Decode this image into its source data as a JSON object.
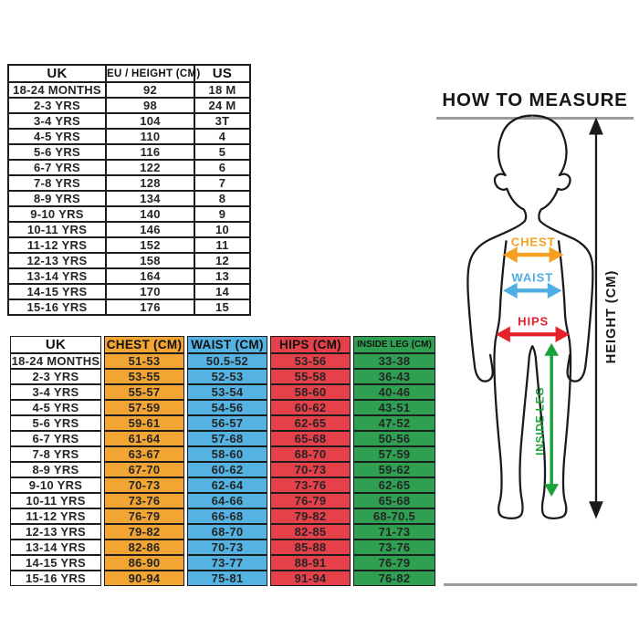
{
  "size_chart_international": {
    "columns": [
      "UK",
      "EU / HEIGHT (CM)",
      "US"
    ],
    "rows": [
      [
        "18-24 MONTHS",
        "92",
        "18 M"
      ],
      [
        "2-3 YRS",
        "98",
        "24 M"
      ],
      [
        "3-4 YRS",
        "104",
        "3T"
      ],
      [
        "4-5 YRS",
        "110",
        "4"
      ],
      [
        "5-6 YRS",
        "116",
        "5"
      ],
      [
        "6-7 YRS",
        "122",
        "6"
      ],
      [
        "7-8 YRS",
        "128",
        "7"
      ],
      [
        "8-9 YRS",
        "134",
        "8"
      ],
      [
        "9-10 YRS",
        "140",
        "9"
      ],
      [
        "10-11 YRS",
        "146",
        "10"
      ],
      [
        "11-12 YRS",
        "152",
        "11"
      ],
      [
        "12-13 YRS",
        "158",
        "12"
      ],
      [
        "13-14 YRS",
        "164",
        "13"
      ],
      [
        "14-15 YRS",
        "170",
        "14"
      ],
      [
        "15-16 YRS",
        "176",
        "15"
      ]
    ]
  },
  "size_chart_measurements": {
    "columns": [
      "UK",
      "CHEST (CM)",
      "WAIST (CM)",
      "HIPS (CM)",
      "INSIDE LEG (CM)"
    ],
    "column_colors": [
      "#FFFFFF",
      "#F2A532",
      "#55B3E3",
      "#E6404A",
      "#2FA052"
    ],
    "rows": [
      [
        "18-24 MONTHS",
        "51-53",
        "50.5-52",
        "53-56",
        "33-38"
      ],
      [
        "2-3 YRS",
        "53-55",
        "52-53",
        "55-58",
        "36-43"
      ],
      [
        "3-4 YRS",
        "55-57",
        "53-54",
        "58-60",
        "40-46"
      ],
      [
        "4-5 YRS",
        "57-59",
        "54-56",
        "60-62",
        "43-51"
      ],
      [
        "5-6 YRS",
        "59-61",
        "56-57",
        "62-65",
        "47-52"
      ],
      [
        "6-7 YRS",
        "61-64",
        "57-68",
        "65-68",
        "50-56"
      ],
      [
        "7-8 YRS",
        "63-67",
        "58-60",
        "68-70",
        "57-59"
      ],
      [
        "8-9 YRS",
        "67-70",
        "60-62",
        "70-73",
        "59-62"
      ],
      [
        "9-10 YRS",
        "70-73",
        "62-64",
        "73-76",
        "62-65"
      ],
      [
        "10-11 YRS",
        "73-76",
        "64-66",
        "76-79",
        "65-68"
      ],
      [
        "11-12 YRS",
        "76-79",
        "66-68",
        "79-82",
        "68-70.5"
      ],
      [
        "12-13 YRS",
        "79-82",
        "68-70",
        "82-85",
        "71-73"
      ],
      [
        "13-14 YRS",
        "82-86",
        "70-73",
        "85-88",
        "73-76"
      ],
      [
        "14-15 YRS",
        "86-90",
        "73-77",
        "88-91",
        "76-79"
      ],
      [
        "15-16 YRS",
        "90-94",
        "75-81",
        "91-94",
        "76-82"
      ]
    ]
  },
  "measure_figure": {
    "title": "HOW TO MEASURE",
    "labels": {
      "chest": "CHEST",
      "waist": "WAIST",
      "hips": "HIPS",
      "inside_leg": "INSIDE LEG",
      "height": "HEIGHT (CM)"
    },
    "colors": {
      "chest_arrow": "#F5A01E",
      "waist_arrow": "#4FAEE3",
      "hips_arrow": "#E8202C",
      "inside_leg_arrow": "#1CA23C",
      "height_arrow": "#1A1A1A",
      "outline": "#1A1A1A",
      "rule_gray": "#9B9B9B"
    }
  }
}
